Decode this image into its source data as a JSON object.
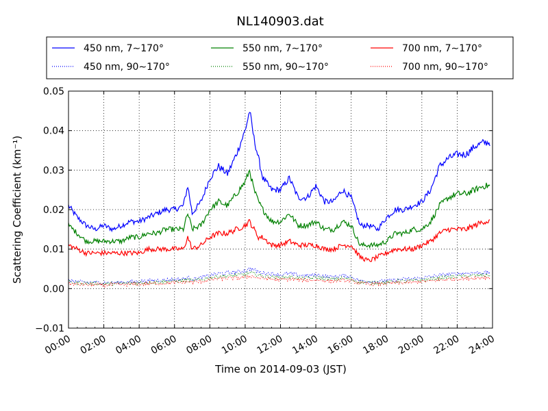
{
  "chart_data": {
    "type": "line",
    "title": "NL140903.dat",
    "xlabel": "Time on 2014-09-03 (JST)",
    "ylabel": "Scattering Coefficient (km⁻¹)",
    "xlim": [
      "00:00",
      "24:00"
    ],
    "ylim": [
      -0.01,
      0.05
    ],
    "x_ticks": [
      "00:00",
      "02:00",
      "04:00",
      "06:00",
      "08:00",
      "10:00",
      "12:00",
      "14:00",
      "16:00",
      "18:00",
      "20:00",
      "22:00",
      "24:00"
    ],
    "y_ticks": [
      "−0.01",
      "0.00",
      "0.01",
      "0.02",
      "0.03",
      "0.04",
      "0.05"
    ],
    "y_tick_values": [
      -0.01,
      0.0,
      0.01,
      0.02,
      0.03,
      0.04,
      0.05
    ],
    "grid": true,
    "legend_position": "top, above plot (3 columns)",
    "x_hours": [
      0,
      0.5,
      1,
      1.5,
      2,
      2.5,
      3,
      3.5,
      4,
      4.5,
      5,
      5.5,
      6,
      6.5,
      6.75,
      7,
      7.5,
      8,
      8.5,
      9,
      9.5,
      10,
      10.25,
      10.5,
      10.75,
      11,
      11.5,
      12,
      12.5,
      13,
      13.5,
      14,
      14.5,
      15,
      15.5,
      16,
      16.5,
      17,
      17.5,
      18,
      18.5,
      19,
      19.5,
      20,
      20.5,
      21,
      21.5,
      22,
      22.5,
      23,
      23.5,
      24
    ],
    "series": [
      {
        "name": "450 nm, 7∼170°",
        "color": "#0000ff",
        "style": "solid",
        "values": [
          0.021,
          0.018,
          0.016,
          0.015,
          0.016,
          0.015,
          0.016,
          0.017,
          0.017,
          0.018,
          0.019,
          0.02,
          0.02,
          0.021,
          0.026,
          0.019,
          0.022,
          0.028,
          0.031,
          0.029,
          0.034,
          0.04,
          0.045,
          0.038,
          0.033,
          0.028,
          0.025,
          0.025,
          0.028,
          0.023,
          0.023,
          0.026,
          0.022,
          0.022,
          0.025,
          0.023,
          0.016,
          0.016,
          0.015,
          0.018,
          0.02,
          0.02,
          0.021,
          0.022,
          0.025,
          0.031,
          0.033,
          0.034,
          0.034,
          0.036,
          0.037,
          0.037
        ]
      },
      {
        "name": "550 nm, 7∼170°",
        "color": "#008000",
        "style": "solid",
        "values": [
          0.016,
          0.014,
          0.012,
          0.012,
          0.012,
          0.012,
          0.012,
          0.013,
          0.013,
          0.014,
          0.014,
          0.015,
          0.015,
          0.015,
          0.019,
          0.015,
          0.016,
          0.02,
          0.022,
          0.021,
          0.024,
          0.027,
          0.03,
          0.025,
          0.022,
          0.02,
          0.017,
          0.017,
          0.019,
          0.016,
          0.016,
          0.017,
          0.015,
          0.015,
          0.017,
          0.016,
          0.011,
          0.011,
          0.011,
          0.012,
          0.014,
          0.014,
          0.015,
          0.015,
          0.017,
          0.021,
          0.023,
          0.024,
          0.024,
          0.025,
          0.026,
          0.026
        ]
      },
      {
        "name": "700 nm, 7∼170°",
        "color": "#ff0000",
        "style": "solid",
        "values": [
          0.011,
          0.01,
          0.009,
          0.009,
          0.009,
          0.009,
          0.009,
          0.009,
          0.009,
          0.01,
          0.01,
          0.01,
          0.01,
          0.01,
          0.013,
          0.01,
          0.011,
          0.013,
          0.014,
          0.014,
          0.015,
          0.016,
          0.017,
          0.015,
          0.013,
          0.013,
          0.011,
          0.011,
          0.012,
          0.011,
          0.011,
          0.011,
          0.01,
          0.01,
          0.011,
          0.011,
          0.008,
          0.007,
          0.008,
          0.009,
          0.01,
          0.01,
          0.01,
          0.011,
          0.012,
          0.014,
          0.015,
          0.015,
          0.015,
          0.016,
          0.017,
          0.017
        ]
      },
      {
        "name": "450 nm, 90∼170°",
        "color": "#0000ff",
        "style": "dotted",
        "values": [
          0.002,
          0.0018,
          0.0016,
          0.0016,
          0.0015,
          0.0015,
          0.0016,
          0.0017,
          0.0018,
          0.002,
          0.0021,
          0.0022,
          0.0023,
          0.0025,
          0.0028,
          0.0024,
          0.0028,
          0.0034,
          0.0038,
          0.004,
          0.0042,
          0.0045,
          0.005,
          0.0048,
          0.0042,
          0.004,
          0.0038,
          0.0035,
          0.0038,
          0.0034,
          0.0033,
          0.0035,
          0.0031,
          0.003,
          0.0033,
          0.003,
          0.002,
          0.0018,
          0.0018,
          0.002,
          0.0022,
          0.0024,
          0.0025,
          0.0027,
          0.003,
          0.0034,
          0.0036,
          0.0038,
          0.0039,
          0.004,
          0.0041,
          0.0041
        ]
      },
      {
        "name": "550 nm, 90∼170°",
        "color": "#008000",
        "style": "dotted",
        "values": [
          0.0016,
          0.0015,
          0.0013,
          0.0013,
          0.0012,
          0.0013,
          0.0013,
          0.0014,
          0.0015,
          0.0016,
          0.0017,
          0.0018,
          0.0019,
          0.002,
          0.0023,
          0.002,
          0.0023,
          0.0028,
          0.0031,
          0.0032,
          0.0034,
          0.0036,
          0.004,
          0.0038,
          0.0034,
          0.0032,
          0.003,
          0.0028,
          0.003,
          0.0027,
          0.0026,
          0.0028,
          0.0025,
          0.0024,
          0.0026,
          0.0024,
          0.0016,
          0.0015,
          0.0015,
          0.0016,
          0.0018,
          0.0019,
          0.002,
          0.0022,
          0.0024,
          0.0027,
          0.0029,
          0.0031,
          0.0032,
          0.0033,
          0.0034,
          0.0034
        ]
      },
      {
        "name": "700 nm, 90∼170°",
        "color": "#ff0000",
        "style": "dotted",
        "values": [
          0.0012,
          0.0011,
          0.001,
          0.001,
          0.0009,
          0.001,
          0.001,
          0.0011,
          0.0011,
          0.0012,
          0.0013,
          0.0014,
          0.0015,
          0.0016,
          0.0018,
          0.0016,
          0.0018,
          0.0022,
          0.0025,
          0.0026,
          0.0027,
          0.0029,
          0.0032,
          0.003,
          0.0027,
          0.0026,
          0.0024,
          0.0022,
          0.0024,
          0.0022,
          0.0021,
          0.0022,
          0.002,
          0.0019,
          0.0021,
          0.0019,
          0.0013,
          0.0012,
          0.0012,
          0.0013,
          0.0014,
          0.0015,
          0.0016,
          0.0018,
          0.0019,
          0.0022,
          0.0023,
          0.0025,
          0.0026,
          0.0027,
          0.0028,
          0.0028
        ]
      }
    ]
  }
}
